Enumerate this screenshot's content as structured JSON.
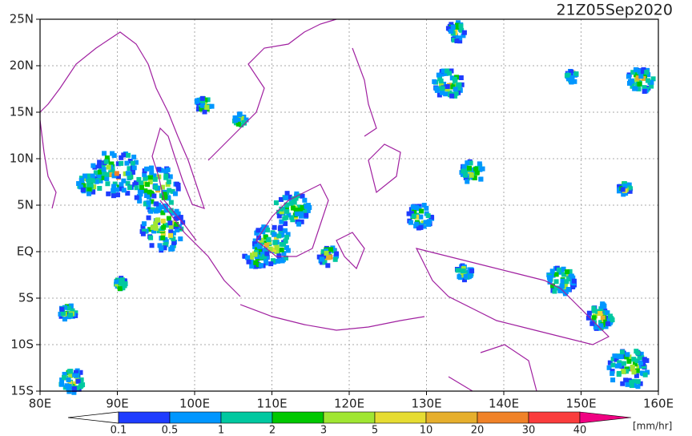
{
  "map": {
    "title": "21Z05Sep2020",
    "lon_labels": [
      "80E",
      "90E",
      "100E",
      "110E",
      "120E",
      "130E",
      "140E",
      "150E",
      "160E"
    ],
    "lat_labels": [
      "25N",
      "20N",
      "15N",
      "10N",
      "5N",
      "EQ",
      "5S",
      "10S",
      "15S"
    ],
    "colorbar": {
      "unit": "[mm/hr]",
      "labels": [
        0.1,
        0.5,
        1,
        2,
        3,
        5,
        10,
        20,
        30,
        40
      ],
      "colors": [
        "#1e3cff",
        "#0096ff",
        "#00c8a0",
        "#00c800",
        "#a0e632",
        "#e6dc32",
        "#e6af2d",
        "#f08228",
        "#fa3c3c",
        "#f00082"
      ]
    }
  }
}
